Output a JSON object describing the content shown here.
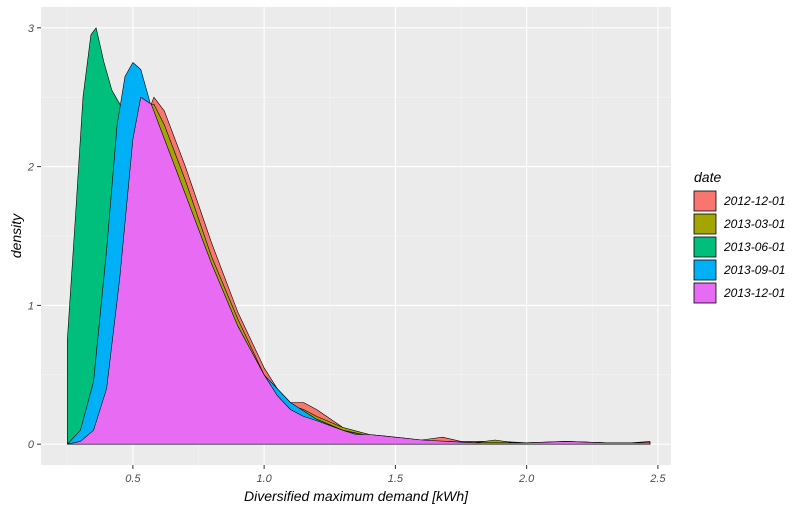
{
  "chart_data": {
    "type": "area",
    "xlabel": "Diversified maximum demand [kWh]",
    "ylabel": "density",
    "xlim": [
      0.15,
      2.55
    ],
    "ylim": [
      -0.15,
      3.15
    ],
    "x_ticks": [
      0.5,
      1.0,
      1.5,
      2.0,
      2.5
    ],
    "x_tick_labels": [
      "0.5",
      "1.0",
      "1.5",
      "2.0",
      "2.5"
    ],
    "y_ticks": [
      0,
      1,
      2,
      3
    ],
    "y_tick_labels": [
      "0",
      "1",
      "2",
      "3"
    ],
    "grid": true,
    "legend": {
      "title": "date",
      "position": "right"
    },
    "series": [
      {
        "name": "2012-12-01",
        "color": "#F8766D",
        "points": [
          [
            0.25,
            0.0
          ],
          [
            0.3,
            0.02
          ],
          [
            0.35,
            0.1
          ],
          [
            0.4,
            0.35
          ],
          [
            0.45,
            1.0
          ],
          [
            0.5,
            1.8
          ],
          [
            0.55,
            2.35
          ],
          [
            0.58,
            2.5
          ],
          [
            0.62,
            2.4
          ],
          [
            0.7,
            2.0
          ],
          [
            0.8,
            1.45
          ],
          [
            0.9,
            0.95
          ],
          [
            1.0,
            0.55
          ],
          [
            1.05,
            0.4
          ],
          [
            1.1,
            0.3
          ],
          [
            1.15,
            0.3
          ],
          [
            1.2,
            0.25
          ],
          [
            1.3,
            0.12
          ],
          [
            1.4,
            0.07
          ],
          [
            1.5,
            0.05
          ],
          [
            1.6,
            0.03
          ],
          [
            1.68,
            0.05
          ],
          [
            1.75,
            0.02
          ],
          [
            1.85,
            0.02
          ],
          [
            1.9,
            0.02
          ],
          [
            2.0,
            0.01
          ],
          [
            2.15,
            0.02
          ],
          [
            2.3,
            0.01
          ],
          [
            2.4,
            0.01
          ],
          [
            2.47,
            0.02
          ]
        ]
      },
      {
        "name": "2013-03-01",
        "color": "#A3A500",
        "points": [
          [
            0.25,
            0.0
          ],
          [
            0.3,
            0.02
          ],
          [
            0.35,
            0.1
          ],
          [
            0.4,
            0.4
          ],
          [
            0.45,
            1.1
          ],
          [
            0.5,
            1.95
          ],
          [
            0.55,
            2.45
          ],
          [
            0.58,
            2.45
          ],
          [
            0.62,
            2.3
          ],
          [
            0.7,
            1.9
          ],
          [
            0.8,
            1.35
          ],
          [
            0.9,
            0.9
          ],
          [
            1.0,
            0.5
          ],
          [
            1.05,
            0.35
          ],
          [
            1.1,
            0.28
          ],
          [
            1.15,
            0.25
          ],
          [
            1.2,
            0.2
          ],
          [
            1.3,
            0.12
          ],
          [
            1.4,
            0.07
          ],
          [
            1.5,
            0.04
          ],
          [
            1.6,
            0.02
          ],
          [
            1.7,
            0.02
          ],
          [
            1.8,
            0.01
          ],
          [
            1.88,
            0.03
          ],
          [
            1.95,
            0.01
          ],
          [
            2.05,
            0.01
          ],
          [
            2.15,
            0.02
          ],
          [
            2.3,
            0.01
          ],
          [
            2.47,
            0.01
          ]
        ]
      },
      {
        "name": "2013-06-01",
        "color": "#00BF7D",
        "points": [
          [
            0.25,
            0.75
          ],
          [
            0.28,
            1.6
          ],
          [
            0.31,
            2.5
          ],
          [
            0.34,
            2.95
          ],
          [
            0.36,
            3.0
          ],
          [
            0.39,
            2.75
          ],
          [
            0.42,
            2.55
          ],
          [
            0.45,
            2.45
          ],
          [
            0.5,
            2.3
          ],
          [
            0.55,
            2.1
          ],
          [
            0.6,
            1.85
          ],
          [
            0.7,
            1.4
          ],
          [
            0.8,
            1.0
          ],
          [
            0.9,
            0.7
          ],
          [
            1.0,
            0.45
          ],
          [
            1.1,
            0.25
          ],
          [
            1.2,
            0.15
          ],
          [
            1.3,
            0.1
          ],
          [
            1.4,
            0.06
          ],
          [
            1.5,
            0.04
          ],
          [
            1.6,
            0.02
          ],
          [
            1.7,
            0.01
          ],
          [
            1.8,
            0.01
          ],
          [
            1.9,
            0.01
          ],
          [
            2.0,
            0.01
          ],
          [
            2.2,
            0.01
          ],
          [
            2.47,
            0.01
          ]
        ]
      },
      {
        "name": "2013-09-01",
        "color": "#00B0F6",
        "points": [
          [
            0.25,
            0.0
          ],
          [
            0.3,
            0.1
          ],
          [
            0.35,
            0.45
          ],
          [
            0.4,
            1.4
          ],
          [
            0.44,
            2.3
          ],
          [
            0.47,
            2.65
          ],
          [
            0.5,
            2.75
          ],
          [
            0.53,
            2.7
          ],
          [
            0.56,
            2.5
          ],
          [
            0.6,
            2.2
          ],
          [
            0.7,
            1.65
          ],
          [
            0.8,
            1.2
          ],
          [
            0.9,
            0.8
          ],
          [
            1.0,
            0.5
          ],
          [
            1.1,
            0.3
          ],
          [
            1.2,
            0.18
          ],
          [
            1.3,
            0.1
          ],
          [
            1.4,
            0.06
          ],
          [
            1.5,
            0.04
          ],
          [
            1.6,
            0.02
          ],
          [
            1.7,
            0.01
          ],
          [
            1.8,
            0.01
          ],
          [
            1.9,
            0.01
          ],
          [
            2.1,
            0.01
          ],
          [
            2.47,
            0.01
          ]
        ]
      },
      {
        "name": "2013-12-01",
        "color": "#E76BF3",
        "points": [
          [
            0.25,
            0.0
          ],
          [
            0.3,
            0.02
          ],
          [
            0.35,
            0.1
          ],
          [
            0.4,
            0.4
          ],
          [
            0.45,
            1.2
          ],
          [
            0.5,
            2.2
          ],
          [
            0.53,
            2.5
          ],
          [
            0.57,
            2.45
          ],
          [
            0.6,
            2.3
          ],
          [
            0.7,
            1.8
          ],
          [
            0.8,
            1.3
          ],
          [
            0.9,
            0.85
          ],
          [
            1.0,
            0.5
          ],
          [
            1.05,
            0.35
          ],
          [
            1.1,
            0.25
          ],
          [
            1.15,
            0.2
          ],
          [
            1.2,
            0.17
          ],
          [
            1.3,
            0.1
          ],
          [
            1.35,
            0.07
          ],
          [
            1.4,
            0.07
          ],
          [
            1.5,
            0.05
          ],
          [
            1.6,
            0.03
          ],
          [
            1.7,
            0.02
          ],
          [
            1.8,
            0.01
          ],
          [
            1.9,
            0.01
          ],
          [
            2.0,
            0.01
          ],
          [
            2.15,
            0.02
          ],
          [
            2.3,
            0.01
          ],
          [
            2.47,
            0.01
          ]
        ]
      }
    ]
  }
}
